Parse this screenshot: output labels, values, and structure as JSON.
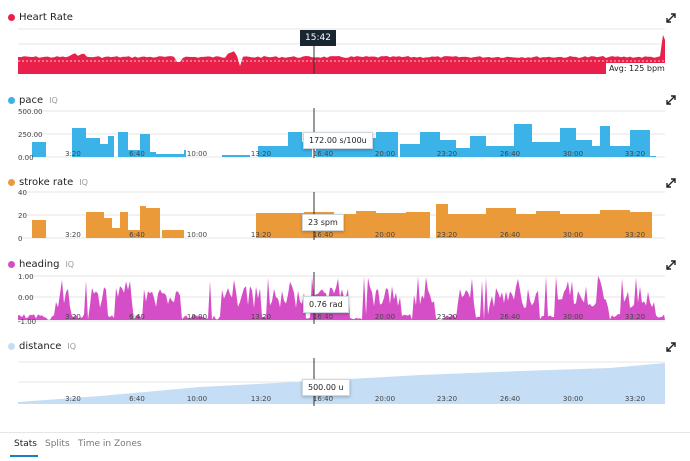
{
  "cursor_time": "15:42",
  "x_ticks": [
    "3:20",
    "6:40",
    "10:00",
    "13:20",
    "16:40",
    "20:00",
    "23:20",
    "26:40",
    "30:00",
    "33:20"
  ],
  "panels": {
    "heart_rate": {
      "title": "Heart Rate",
      "color": "#e8204a",
      "avg_label": "Avg: 125 bpm"
    },
    "pace": {
      "title": "pace",
      "iq": "IQ",
      "color": "#3bb2e8",
      "y_ticks": [
        "500.00",
        "250.00",
        "0.00"
      ],
      "tooltip": "172.00 s/100u"
    },
    "stroke_rate": {
      "title": "stroke rate",
      "iq": "IQ",
      "color": "#eb9a3a",
      "y_ticks": [
        "40",
        "20",
        "0"
      ],
      "tooltip": "23 spm"
    },
    "heading": {
      "title": "heading",
      "iq": "IQ",
      "color": "#d64ec7",
      "y_ticks": [
        "1.00",
        "0.00",
        "-1.00"
      ],
      "tooltip": "0.76 rad"
    },
    "distance": {
      "title": "distance",
      "iq": "IQ",
      "color": "#c5def5",
      "tooltip": "500.00 u"
    }
  },
  "tabs": [
    "Stats",
    "Splits",
    "Time in Zones"
  ],
  "icons": {
    "expand": "expand-icon"
  }
}
